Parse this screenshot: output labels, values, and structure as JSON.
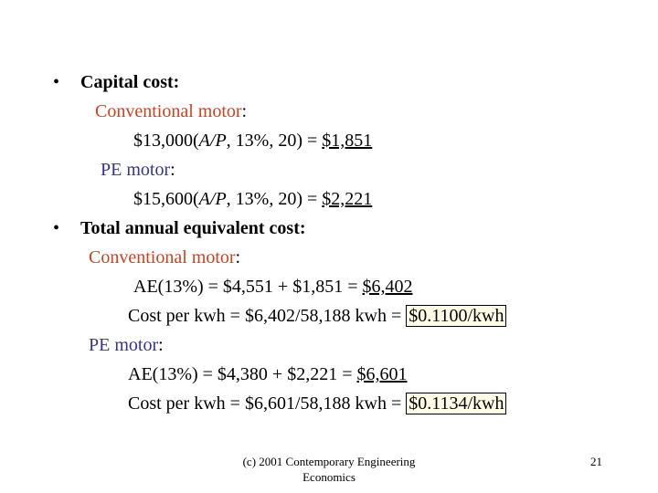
{
  "bullets": [
    "•",
    "•"
  ],
  "capital": {
    "heading": "Capital cost:",
    "conv_label": "Conventional motor",
    "conv_colon": ":",
    "conv_formula": "$13,000(",
    "conv_italic": "A/P",
    "conv_rest": ", 13%, 20) = ",
    "conv_result": "$1,851",
    "pe_label": "PE motor",
    "pe_colon": ":",
    "pe_formula": "$15,600(",
    "pe_italic": "A/P",
    "pe_rest": ", 13%, 20) = ",
    "pe_result": "$2,221"
  },
  "total": {
    "heading": "Total annual equivalent cost:",
    "conv_label": "Conventional motor",
    "conv_colon": ":",
    "conv_ae": "AE(13%) = $4,551 + $1,851 = ",
    "conv_ae_result": "$6,402",
    "conv_cost": "Cost per kwh = $6,402/58,188 kwh = ",
    "conv_cost_result": "$0.1100/kwh",
    "pe_label": "PE motor",
    "pe_colon": ":",
    "pe_ae": "AE(13%) = $4,380 + $2,221 = ",
    "pe_ae_result": "$6,601",
    "pe_cost": "Cost per kwh = $6,601/58,188 kwh = ",
    "pe_cost_result": "$0.1134/kwh"
  },
  "footer": {
    "line1": "(c) 2001 Contemporary Engineering",
    "line2": "Economics",
    "page": "21"
  },
  "colors": {
    "conventional": "#d2401b",
    "pe": "#33339a",
    "highlight_bg": "#fffde6"
  }
}
